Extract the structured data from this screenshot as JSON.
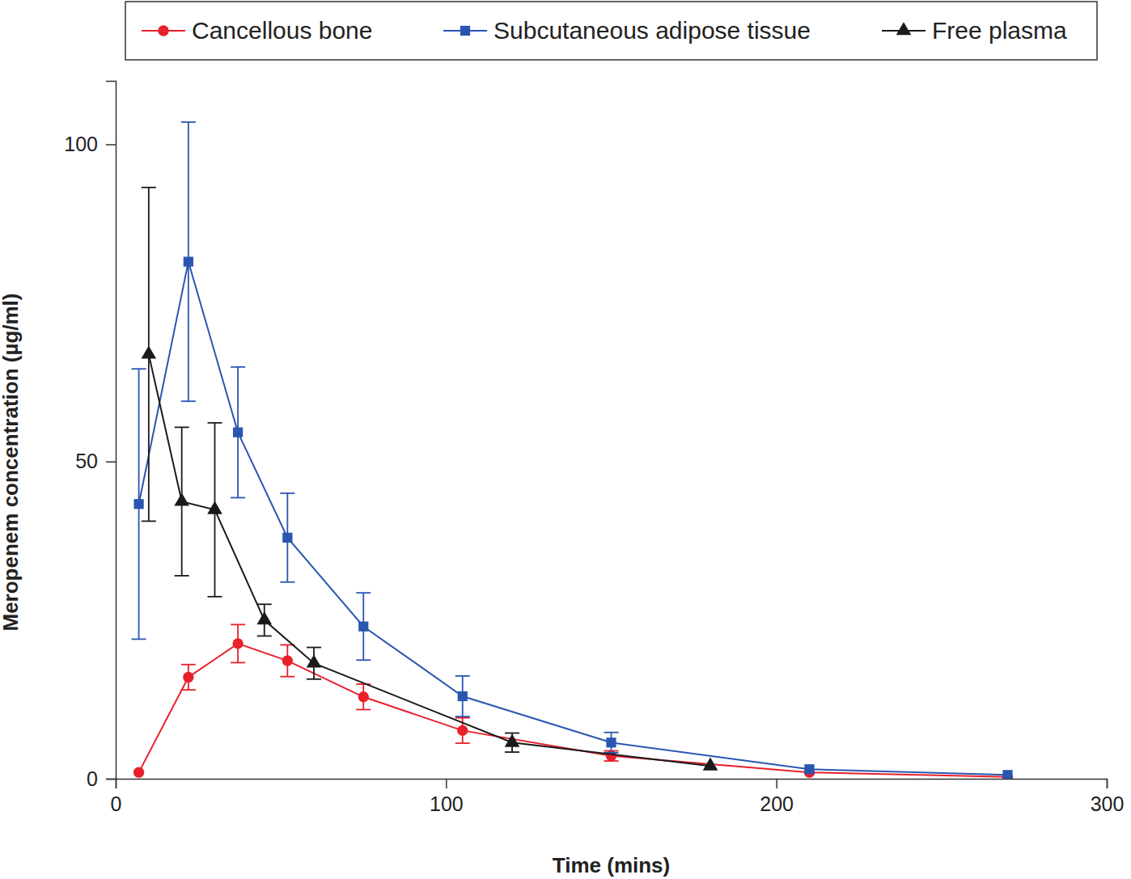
{
  "chart_data": {
    "type": "line",
    "x_label": "Time (mins)",
    "y_label": "Meropenem concentration (µg/ml)",
    "xlim": [
      0,
      300
    ],
    "xticks": [
      0,
      100,
      200,
      300
    ],
    "ylim": [
      0,
      110
    ],
    "yticks": [
      0,
      50,
      100
    ],
    "grid": false,
    "legend": "top",
    "series": [
      {
        "name": "Cancellous bone",
        "color": "#e8202a",
        "marker": "circle",
        "x": [
          7,
          22,
          37,
          52,
          75,
          105,
          150,
          210,
          270
        ],
        "values": [
          1,
          16,
          21.3,
          18.6,
          12.9,
          7.6,
          3.6,
          1,
          0.3
        ],
        "errors": [
          null,
          2,
          3,
          2.5,
          2,
          2,
          0.8,
          null,
          null
        ]
      },
      {
        "name": "Subcutaneous adipose tissue",
        "color": "#2a56b0",
        "marker": "square",
        "x": [
          7,
          22,
          37,
          52,
          75,
          105,
          150,
          210,
          270
        ],
        "values": [
          43.3,
          81.5,
          54.6,
          38,
          24,
          13,
          5.7,
          1.5,
          0.6
        ],
        "errors": [
          21.3,
          22,
          10.3,
          7,
          5.3,
          3.2,
          1.6,
          null,
          null
        ]
      },
      {
        "name": "Free plasma",
        "color": "#1a1a1a",
        "marker": "triangle",
        "x": [
          10,
          20,
          30,
          45,
          60,
          120,
          180
        ],
        "values": [
          66.9,
          43.7,
          42.4,
          25,
          18.2,
          5.7,
          2
        ],
        "errors": [
          26.3,
          11.7,
          13.7,
          2.5,
          2.5,
          1.5,
          null
        ]
      }
    ]
  }
}
